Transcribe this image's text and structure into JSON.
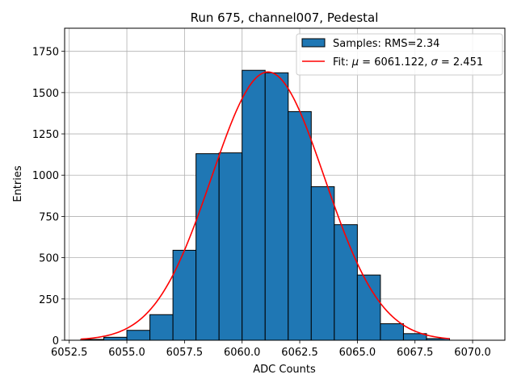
{
  "chart_data": {
    "type": "bar",
    "title": "Run 675, channel007, Pedestal",
    "xlabel": "ADC Counts",
    "ylabel": "Entries",
    "xlim": [
      6052.3,
      6071.4
    ],
    "ylim": [
      0,
      1890
    ],
    "xticks": [
      6052.5,
      6055.0,
      6057.5,
      6060.0,
      6062.5,
      6065.0,
      6067.5,
      6070.0
    ],
    "xtick_labels": [
      "6052.5",
      "6055.0",
      "6057.5",
      "6060.0",
      "6062.5",
      "6065.0",
      "6067.5",
      "6070.0"
    ],
    "yticks": [
      0,
      250,
      500,
      750,
      1000,
      1250,
      1500,
      1750
    ],
    "ytick_labels": [
      "0",
      "250",
      "500",
      "750",
      "1000",
      "1250",
      "1500",
      "1750"
    ],
    "grid": true,
    "legend_position": "top-right",
    "series": [
      {
        "name": "Samples: RMS=2.34",
        "kind": "histogram",
        "color": "#1f77b4",
        "edgecolor": "#000000",
        "bin_edges": [
          6053,
          6054,
          6055,
          6056,
          6057,
          6058,
          6059,
          6060,
          6061,
          6062,
          6063,
          6064,
          6065,
          6066,
          6067,
          6068,
          6069,
          6070,
          6071
        ],
        "values": [
          5,
          18,
          60,
          155,
          545,
          1130,
          1135,
          1635,
          1620,
          1385,
          930,
          700,
          395,
          100,
          40,
          10,
          0,
          0
        ]
      },
      {
        "kind": "line",
        "legend_prefix": "Fit: ",
        "mu_symbol": "μ",
        "mu_text": " = 6061.122, ",
        "sigma_symbol": "σ",
        "sigma_text": " = 2.451",
        "color": "#ff0000",
        "mu": 6061.122,
        "sigma": 2.451,
        "amplitude": 1625,
        "x_range": [
          6053,
          6069
        ]
      }
    ]
  }
}
